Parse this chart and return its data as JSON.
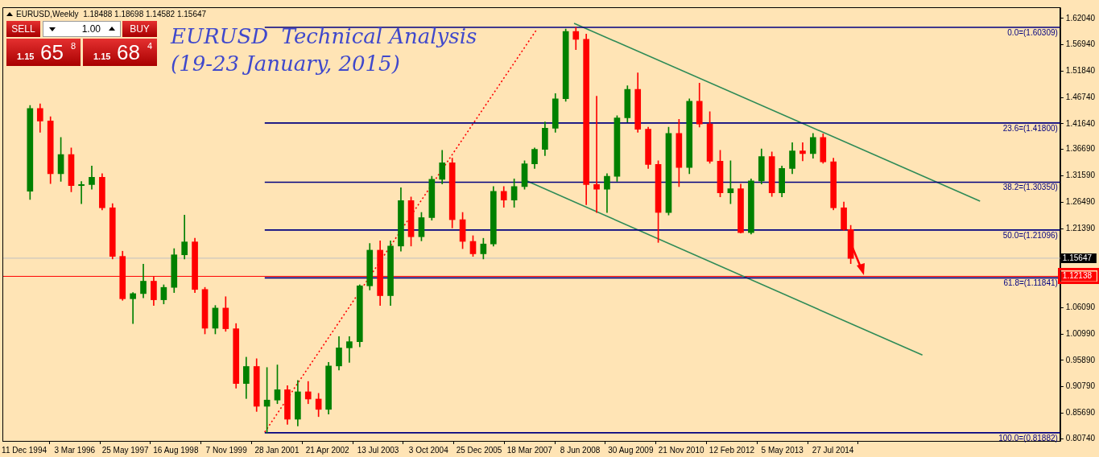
{
  "chart_data": {
    "type": "candlestick",
    "title": "EURUSD  Technical Analysis",
    "subtitle": "(19-23 January, 2015)",
    "annotations": [
      "EURUSD,Weekly  1.18488 1.18698 1.14582 1.15647",
      "SELL",
      "1.00",
      "BUY",
      "1.15",
      "65",
      "8",
      "1.15",
      "68",
      "4"
    ],
    "x": [
      "1995-02",
      "1995-05",
      "1995-08",
      "1995-11",
      "1996-02",
      "1996-05",
      "1996-08",
      "1996-11",
      "1997-02",
      "1997-05",
      "1997-08",
      "1997-11",
      "1998-02",
      "1998-05",
      "1998-08",
      "1998-11",
      "1999-02",
      "1999-05",
      "1999-08",
      "1999-11",
      "2000-02",
      "2000-05",
      "2000-08",
      "2000-11",
      "2001-02",
      "2001-05",
      "2001-08",
      "2001-11",
      "2002-02",
      "2002-05",
      "2002-08",
      "2002-11",
      "2003-02",
      "2003-05",
      "2003-08",
      "2003-11",
      "2004-02",
      "2004-05",
      "2004-08",
      "2004-11",
      "2005-02",
      "2005-05",
      "2005-08",
      "2005-11",
      "2006-02",
      "2006-05",
      "2006-08",
      "2006-11",
      "2007-02",
      "2007-05",
      "2007-08",
      "2007-11",
      "2008-02",
      "2008-05",
      "2008-08",
      "2008-11",
      "2009-02",
      "2009-05",
      "2009-08",
      "2009-11",
      "2010-02",
      "2010-05",
      "2010-08",
      "2010-11",
      "2011-02",
      "2011-05",
      "2011-08",
      "2011-11",
      "2012-02",
      "2012-05",
      "2012-08",
      "2012-11",
      "2013-02",
      "2013-05",
      "2013-08",
      "2013-11",
      "2014-02",
      "2014-05",
      "2014-08",
      "2014-11",
      "2015-01"
    ],
    "ohlc": [
      [
        1.286,
        1.452,
        1.27,
        1.446
      ],
      [
        1.446,
        1.455,
        1.4,
        1.422
      ],
      [
        1.422,
        1.43,
        1.301,
        1.32
      ],
      [
        1.32,
        1.39,
        1.305,
        1.357
      ],
      [
        1.357,
        1.37,
        1.285,
        1.297
      ],
      [
        1.297,
        1.305,
        1.262,
        1.299
      ],
      [
        1.299,
        1.335,
        1.29,
        1.313
      ],
      [
        1.313,
        1.32,
        1.25,
        1.254
      ],
      [
        1.254,
        1.262,
        1.155,
        1.16
      ],
      [
        1.16,
        1.17,
        1.075,
        1.078
      ],
      [
        1.078,
        1.09,
        1.03,
        1.088
      ],
      [
        1.088,
        1.145,
        1.08,
        1.112
      ],
      [
        1.112,
        1.12,
        1.065,
        1.076
      ],
      [
        1.076,
        1.105,
        1.068,
        1.1
      ],
      [
        1.1,
        1.175,
        1.09,
        1.163
      ],
      [
        1.163,
        1.24,
        1.155,
        1.188
      ],
      [
        1.188,
        1.195,
        1.09,
        1.096
      ],
      [
        1.096,
        1.1,
        1.01,
        1.021
      ],
      [
        1.021,
        1.065,
        1.01,
        1.06
      ],
      [
        1.06,
        1.082,
        1.015,
        1.02
      ],
      [
        1.02,
        1.03,
        0.905,
        0.914
      ],
      [
        0.914,
        0.965,
        0.885,
        0.947
      ],
      [
        0.947,
        0.962,
        0.86,
        0.87
      ],
      [
        0.87,
        0.945,
        0.819,
        0.882
      ],
      [
        0.882,
        0.95,
        0.875,
        0.902
      ],
      [
        0.902,
        0.91,
        0.835,
        0.845
      ],
      [
        0.845,
        0.92,
        0.832,
        0.898
      ],
      [
        0.898,
        0.918,
        0.875,
        0.884
      ],
      [
        0.884,
        0.895,
        0.85,
        0.864
      ],
      [
        0.864,
        0.955,
        0.855,
        0.948
      ],
      [
        0.948,
        1.005,
        0.94,
        0.983
      ],
      [
        0.983,
        1.005,
        0.955,
        0.995
      ],
      [
        0.995,
        1.105,
        0.985,
        1.103
      ],
      [
        1.103,
        1.185,
        1.095,
        1.172
      ],
      [
        1.172,
        1.19,
        1.065,
        1.084
      ],
      [
        1.084,
        1.19,
        1.065,
        1.18
      ],
      [
        1.18,
        1.293,
        1.17,
        1.268
      ],
      [
        1.268,
        1.275,
        1.18,
        1.198
      ],
      [
        1.198,
        1.245,
        1.19,
        1.235
      ],
      [
        1.235,
        1.315,
        1.23,
        1.309
      ],
      [
        1.309,
        1.365,
        1.3,
        1.341
      ],
      [
        1.341,
        1.35,
        1.215,
        1.231
      ],
      [
        1.231,
        1.245,
        1.175,
        1.189
      ],
      [
        1.189,
        1.2,
        1.16,
        1.165
      ],
      [
        1.165,
        1.195,
        1.155,
        1.184
      ],
      [
        1.184,
        1.295,
        1.18,
        1.286
      ],
      [
        1.286,
        1.295,
        1.255,
        1.269
      ],
      [
        1.269,
        1.31,
        1.255,
        1.295
      ],
      [
        1.295,
        1.345,
        1.29,
        1.339
      ],
      [
        1.339,
        1.37,
        1.33,
        1.367
      ],
      [
        1.367,
        1.42,
        1.355,
        1.408
      ],
      [
        1.408,
        1.475,
        1.4,
        1.465
      ],
      [
        1.465,
        1.6,
        1.46,
        1.595
      ],
      [
        1.595,
        1.603,
        1.56,
        1.58
      ],
      [
        1.58,
        1.59,
        1.26,
        1.299
      ],
      [
        1.299,
        1.47,
        1.245,
        1.29
      ],
      [
        1.29,
        1.32,
        1.245,
        1.315
      ],
      [
        1.315,
        1.432,
        1.305,
        1.428
      ],
      [
        1.428,
        1.49,
        1.42,
        1.483
      ],
      [
        1.483,
        1.515,
        1.4,
        1.406
      ],
      [
        1.406,
        1.41,
        1.33,
        1.338
      ],
      [
        1.338,
        1.345,
        1.187,
        1.245
      ],
      [
        1.245,
        1.41,
        1.24,
        1.398
      ],
      [
        1.398,
        1.425,
        1.295,
        1.332
      ],
      [
        1.332,
        1.465,
        1.32,
        1.46
      ],
      [
        1.46,
        1.495,
        1.41,
        1.416
      ],
      [
        1.416,
        1.44,
        1.34,
        1.344
      ],
      [
        1.344,
        1.365,
        1.275,
        1.283
      ],
      [
        1.283,
        1.345,
        1.262,
        1.291
      ],
      [
        1.291,
        1.3,
        1.205,
        1.206
      ],
      [
        1.206,
        1.31,
        1.203,
        1.306
      ],
      [
        1.306,
        1.368,
        1.3,
        1.353
      ],
      [
        1.353,
        1.362,
        1.276,
        1.283
      ],
      [
        1.283,
        1.335,
        1.275,
        1.33
      ],
      [
        1.33,
        1.38,
        1.32,
        1.364
      ],
      [
        1.364,
        1.38,
        1.345,
        1.359
      ],
      [
        1.359,
        1.398,
        1.35,
        1.39
      ],
      [
        1.39,
        1.397,
        1.34,
        1.343
      ],
      [
        1.343,
        1.35,
        1.25,
        1.254
      ],
      [
        1.254,
        1.265,
        1.21,
        1.212
      ],
      [
        1.212,
        1.22,
        1.146,
        1.156
      ]
    ],
    "colors": [
      "#008000",
      "#ff0000",
      "#ff0000",
      "#008000",
      "#ff0000",
      "#008000",
      "#008000",
      "#ff0000",
      "#ff0000",
      "#ff0000",
      "#008000",
      "#008000",
      "#ff0000",
      "#008000",
      "#008000",
      "#008000",
      "#ff0000",
      "#ff0000",
      "#008000",
      "#ff0000",
      "#ff0000",
      "#008000",
      "#ff0000",
      "#008000",
      "#008000",
      "#ff0000",
      "#008000",
      "#ff0000",
      "#ff0000",
      "#008000",
      "#008000",
      "#008000",
      "#008000",
      "#008000",
      "#ff0000",
      "#008000",
      "#008000",
      "#ff0000",
      "#008000",
      "#008000",
      "#008000",
      "#ff0000",
      "#ff0000",
      "#ff0000",
      "#008000",
      "#008000",
      "#ff0000",
      "#008000",
      "#008000",
      "#008000",
      "#008000",
      "#008000",
      "#008000",
      "#ff0000",
      "#ff0000",
      "#ff0000",
      "#008000",
      "#008000",
      "#008000",
      "#ff0000",
      "#ff0000",
      "#ff0000",
      "#008000",
      "#ff0000",
      "#008000",
      "#ff0000",
      "#ff0000",
      "#ff0000",
      "#008000",
      "#ff0000",
      "#008000",
      "#008000",
      "#ff0000",
      "#008000",
      "#008000",
      "#ff0000",
      "#008000",
      "#ff0000",
      "#ff0000",
      "#ff0000",
      "#ff0000"
    ],
    "series": [
      {
        "type": "line",
        "name": "0.0=(1.60309)",
        "color": "#000080",
        "x": [
          "2000-10-12",
          "2020-02-01"
        ],
        "values": [
          1.60309,
          1.60309
        ]
      },
      {
        "type": "line",
        "name": "23.6=(1.41800)",
        "color": "#000080",
        "x": [
          "2000-10-12",
          "2020-02-01"
        ],
        "values": [
          1.418,
          1.418
        ]
      },
      {
        "type": "line",
        "name": "38.2=(1.30350)",
        "color": "#000080",
        "x": [
          "2000-10-12",
          "2020-02-01"
        ],
        "values": [
          1.3035,
          1.3035
        ]
      },
      {
        "type": "line",
        "name": "50.0=(1.21096)",
        "color": "#000080",
        "x": [
          "2000-10-12",
          "2020-02-01"
        ],
        "values": [
          1.21096,
          1.21096
        ]
      },
      {
        "type": "line",
        "name": "61.8=(1.11841)",
        "color": "#000080",
        "x": [
          "2000-10-12",
          "2020-02-01"
        ],
        "values": [
          1.11841,
          1.11841
        ]
      },
      {
        "type": "line",
        "name": "100.0=(0.81882)",
        "color": "#000080",
        "x": [
          "2000-10-12",
          "2020-02-01"
        ],
        "values": [
          0.81882,
          0.81882
        ]
      },
      {
        "type": "line",
        "color": "#2e8b57",
        "x": [
          "2008-04-15",
          "2018-02-20"
        ],
        "values": [
          1.611,
          1.267
        ]
      },
      {
        "type": "line",
        "color": "#2e8b57",
        "x": [
          "2007-02-20",
          "2016-09-27"
        ],
        "values": [
          1.306,
          0.969
        ]
      },
      {
        "type": "line",
        "color": "#ff0000",
        "line_style": "dotted",
        "x": [
          "2000-10-12",
          "2007-05-20"
        ],
        "values": [
          0.82,
          1.599
        ]
      }
    ],
    "ref_lines": [
      {
        "axis": "y",
        "value": 1.15647,
        "label": "1.15647",
        "color": "#c0c0c0"
      },
      {
        "axis": "y",
        "value": 1.12138,
        "label": "1.12138",
        "color": "#ff0000"
      }
    ],
    "xlim": [
      "1994-06-01",
      "2020-02-01"
    ],
    "xticks": [
      {
        "value": "1994-12-11",
        "label": "11 Dec 1994"
      },
      {
        "value": "1996-03-03",
        "label": "3 Mar 1996"
      },
      {
        "value": "1997-05-25",
        "label": "25 May 1997"
      },
      {
        "value": "1998-08-16",
        "label": "16 Aug 1998"
      },
      {
        "value": "1999-11-07",
        "label": "7 Nov 1999"
      },
      {
        "value": "2001-01-28",
        "label": "28 Jan 2001"
      },
      {
        "value": "2002-04-21",
        "label": "21 Apr 2002"
      },
      {
        "value": "2003-07-13",
        "label": "13 Jul 2003"
      },
      {
        "value": "2004-10-03",
        "label": "3 Oct 2004"
      },
      {
        "value": "2005-12-25",
        "label": "25 Dec 2005"
      },
      {
        "value": "2007-03-18",
        "label": "18 Mar 2007"
      },
      {
        "value": "2008-06-08",
        "label": "8 Jun 2008"
      },
      {
        "value": "2009-08-30",
        "label": "30 Aug 2009"
      },
      {
        "value": "2010-11-21",
        "label": "21 Nov 2010"
      },
      {
        "value": "2012-02-12",
        "label": "12 Feb 2012"
      },
      {
        "value": "2013-05-05",
        "label": "5 May 2013"
      },
      {
        "value": "2014-07-27",
        "label": "27 Jul 2014"
      }
    ],
    "ylim": [
      0.803,
      1.642
    ],
    "yticks": [
      {
        "value": 0.8074,
        "label": "0.80740"
      },
      {
        "value": 0.8569,
        "label": "0.85690"
      },
      {
        "value": 0.9079,
        "label": "0.90790"
      },
      {
        "value": 0.9589,
        "label": "0.95890"
      },
      {
        "value": 1.0099,
        "label": "1.00990"
      },
      {
        "value": 1.0609,
        "label": "1.06090"
      },
      {
        "value": 1.2139,
        "label": "1.21390"
      },
      {
        "value": 1.2649,
        "label": "1.26490"
      },
      {
        "value": 1.3159,
        "label": "1.31590"
      },
      {
        "value": 1.3669,
        "label": "1.36690"
      },
      {
        "value": 1.4164,
        "label": "1.41640"
      },
      {
        "value": 1.4674,
        "label": "1.46740"
      },
      {
        "value": 1.5184,
        "label": "1.51840"
      },
      {
        "value": 1.5694,
        "label": "1.56940"
      },
      {
        "value": 1.6204,
        "label": "1.62040"
      }
    ]
  }
}
